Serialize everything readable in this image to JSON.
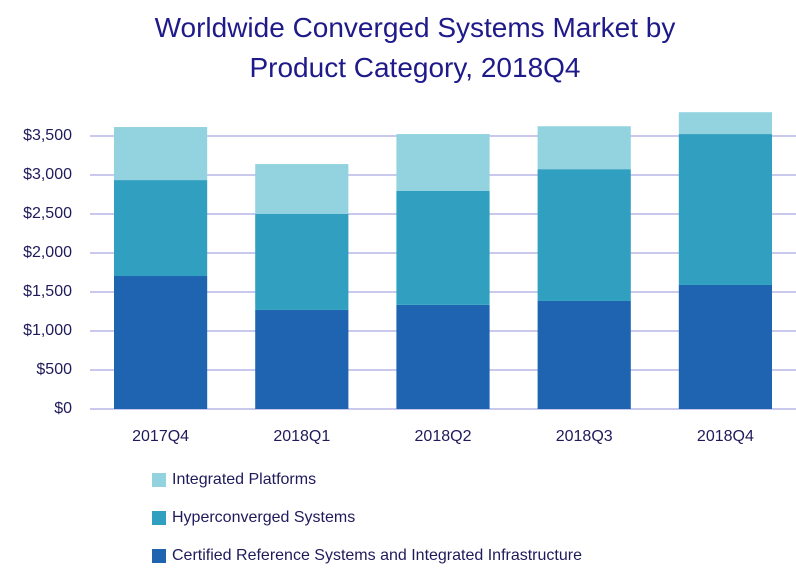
{
  "chart_data": {
    "type": "stacked_bar",
    "title": "Worldwide Converged Systems Market by Product Category, 2018Q4",
    "categories": [
      "2017Q4",
      "2018Q1",
      "2018Q2",
      "2018Q3",
      "2018Q4"
    ],
    "series": [
      {
        "name": "Certified Reference Systems and Integrated Infrastructure",
        "color": "#1f64b0",
        "values": [
          1705,
          1270,
          1335,
          1385,
          1590
        ]
      },
      {
        "name": "Hyperconverged Systems",
        "color": "#31a0c0",
        "values": [
          1230,
          1230,
          1460,
          1690,
          1935
        ]
      },
      {
        "name": "Integrated Platforms",
        "color": "#92d3df",
        "values": [
          680,
          640,
          730,
          550,
          280
        ]
      }
    ],
    "ylim": [
      0,
      3800
    ],
    "yticks": [
      {
        "value": 0,
        "label": "$0"
      },
      {
        "value": 500,
        "label": "$500"
      },
      {
        "value": 1000,
        "label": "$1,000"
      },
      {
        "value": 1500,
        "label": "$1,500"
      },
      {
        "value": 2000,
        "label": "$2,000"
      },
      {
        "value": 2500,
        "label": "$2,500"
      },
      {
        "value": 3000,
        "label": "$3,000"
      },
      {
        "value": 3500,
        "label": "$3,500"
      }
    ],
    "grid": true,
    "legend": "bottom"
  }
}
